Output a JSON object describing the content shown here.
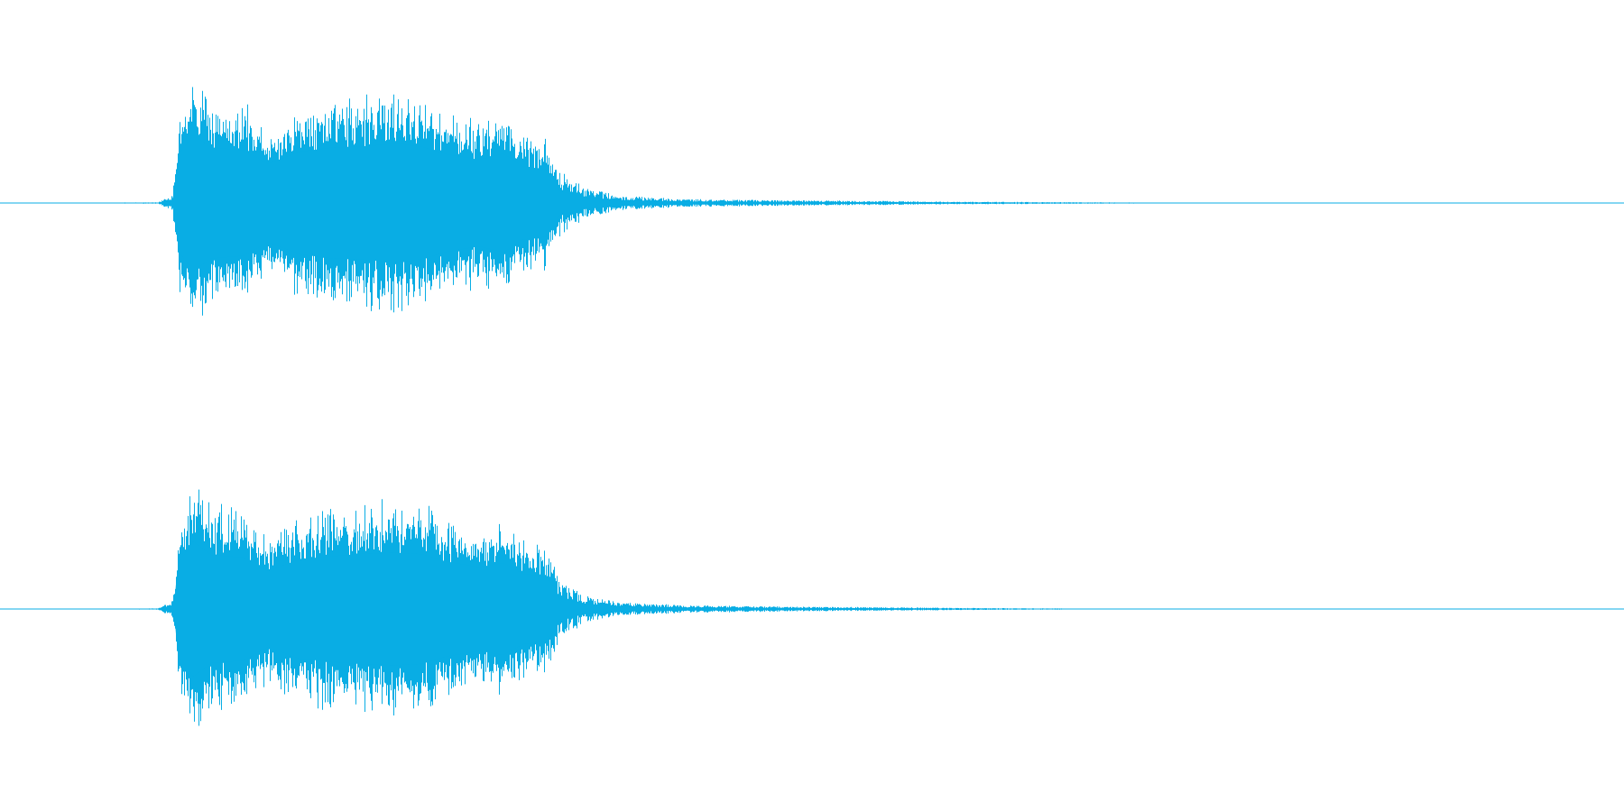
{
  "chart_data": {
    "type": "area",
    "title": "",
    "xlabel": "",
    "ylabel": "",
    "grid": false,
    "legend": "none",
    "color": "#09ade4",
    "ylim": [
      -1,
      1
    ],
    "channels": [
      {
        "name": "",
        "envelope": [
          {
            "x": 0.0,
            "peak": 0.0
          },
          {
            "x": 0.097,
            "peak": 0.005
          },
          {
            "x": 0.106,
            "peak": 0.06
          },
          {
            "x": 0.111,
            "peak": 0.75
          },
          {
            "x": 0.119,
            "peak": 1.0
          },
          {
            "x": 0.13,
            "peak": 0.82
          },
          {
            "x": 0.15,
            "peak": 0.78
          },
          {
            "x": 0.165,
            "peak": 0.58
          },
          {
            "x": 0.185,
            "peak": 0.76
          },
          {
            "x": 0.205,
            "peak": 0.82
          },
          {
            "x": 0.225,
            "peak": 0.84
          },
          {
            "x": 0.245,
            "peak": 0.88
          },
          {
            "x": 0.26,
            "peak": 0.83
          },
          {
            "x": 0.275,
            "peak": 0.72
          },
          {
            "x": 0.295,
            "peak": 0.64
          },
          {
            "x": 0.31,
            "peak": 0.73
          },
          {
            "x": 0.322,
            "peak": 0.54
          },
          {
            "x": 0.336,
            "peak": 0.5
          },
          {
            "x": 0.345,
            "peak": 0.25
          },
          {
            "x": 0.36,
            "peak": 0.12
          },
          {
            "x": 0.38,
            "peak": 0.06
          },
          {
            "x": 0.42,
            "peak": 0.03
          },
          {
            "x": 0.5,
            "peak": 0.02
          },
          {
            "x": 0.6,
            "peak": 0.01
          },
          {
            "x": 0.7,
            "peak": 0.004
          },
          {
            "x": 0.78,
            "peak": 0.0
          },
          {
            "x": 1.0,
            "peak": 0.0
          }
        ]
      },
      {
        "name": "",
        "envelope": [
          {
            "x": 0.0,
            "peak": 0.0
          },
          {
            "x": 0.097,
            "peak": 0.005
          },
          {
            "x": 0.106,
            "peak": 0.06
          },
          {
            "x": 0.111,
            "peak": 0.72
          },
          {
            "x": 0.119,
            "peak": 1.0
          },
          {
            "x": 0.13,
            "peak": 0.8
          },
          {
            "x": 0.15,
            "peak": 0.76
          },
          {
            "x": 0.165,
            "peak": 0.56
          },
          {
            "x": 0.185,
            "peak": 0.74
          },
          {
            "x": 0.205,
            "peak": 0.78
          },
          {
            "x": 0.225,
            "peak": 0.82
          },
          {
            "x": 0.245,
            "peak": 0.83
          },
          {
            "x": 0.26,
            "peak": 0.81
          },
          {
            "x": 0.275,
            "peak": 0.7
          },
          {
            "x": 0.295,
            "peak": 0.62
          },
          {
            "x": 0.31,
            "peak": 0.68
          },
          {
            "x": 0.322,
            "peak": 0.52
          },
          {
            "x": 0.336,
            "peak": 0.48
          },
          {
            "x": 0.345,
            "peak": 0.22
          },
          {
            "x": 0.36,
            "peak": 0.11
          },
          {
            "x": 0.38,
            "peak": 0.055
          },
          {
            "x": 0.42,
            "peak": 0.03
          },
          {
            "x": 0.5,
            "peak": 0.018
          },
          {
            "x": 0.6,
            "peak": 0.008
          },
          {
            "x": 0.68,
            "peak": 0.003
          },
          {
            "x": 0.76,
            "peak": 0.0
          },
          {
            "x": 1.0,
            "peak": 0.0
          }
        ]
      }
    ]
  }
}
